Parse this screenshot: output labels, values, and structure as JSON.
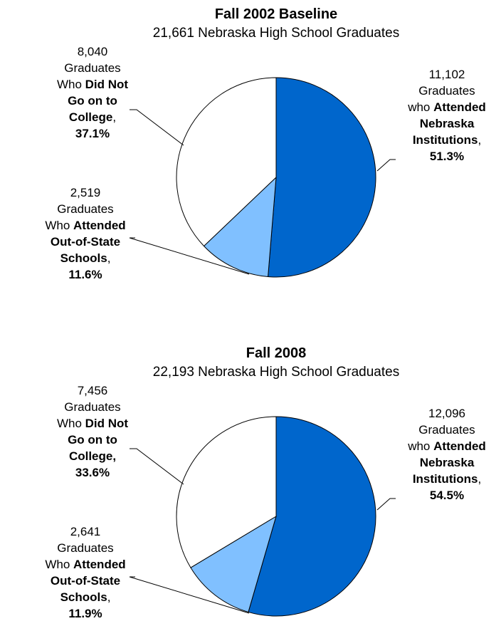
{
  "chart_data": [
    {
      "type": "pie",
      "title": "Fall 2002  Baseline",
      "subtitle": "21,661 Nebraska High School Graduates",
      "values": [
        51.3,
        11.6,
        37.1
      ],
      "value_labels": [
        "51.3%",
        "11.6%",
        "37.1%"
      ],
      "counts": [
        11102,
        2519,
        8040
      ],
      "count_labels": [
        "11,102",
        "2,519",
        "8,040"
      ],
      "colors": [
        "#0066cc",
        "#80c0ff",
        "#ffffff"
      ],
      "label_lines": [
        [
          [
            {
              "text": "Graduates",
              "bold": false
            }
          ],
          [
            {
              "text": "who ",
              "bold": false
            },
            {
              "text": "Attended",
              "bold": true
            }
          ],
          [
            {
              "text": "Nebraska",
              "bold": true
            }
          ],
          [
            {
              "text": "Institutions",
              "bold": true
            },
            {
              "text": ",",
              "bold": false
            }
          ]
        ],
        [
          [
            {
              "text": "Graduates",
              "bold": false
            }
          ],
          [
            {
              "text": "Who ",
              "bold": false
            },
            {
              "text": "Attended",
              "bold": true
            }
          ],
          [
            {
              "text": "Out-of-State",
              "bold": true
            }
          ],
          [
            {
              "text": "Schools",
              "bold": true
            },
            {
              "text": ",",
              "bold": false
            }
          ]
        ],
        [
          [
            {
              "text": "Graduates",
              "bold": false
            }
          ],
          [
            {
              "text": "Who ",
              "bold": false
            },
            {
              "text": "Did Not",
              "bold": true
            }
          ],
          [
            {
              "text": "Go on to",
              "bold": true
            }
          ],
          [
            {
              "text": "College",
              "bold": true
            },
            {
              "text": ",",
              "bold": false
            }
          ]
        ]
      ]
    },
    {
      "type": "pie",
      "title": "Fall 2008",
      "subtitle": "22,193 Nebraska High School Graduates",
      "values": [
        54.5,
        11.9,
        33.6
      ],
      "value_labels": [
        "54.5%",
        "11.9%",
        "33.6%"
      ],
      "counts": [
        12096,
        2641,
        7456
      ],
      "count_labels": [
        "12,096",
        "2,641",
        "7,456"
      ],
      "colors": [
        "#0066cc",
        "#80c0ff",
        "#ffffff"
      ],
      "label_lines": [
        [
          [
            {
              "text": "Graduates",
              "bold": false
            }
          ],
          [
            {
              "text": "who ",
              "bold": false
            },
            {
              "text": "Attended",
              "bold": true
            }
          ],
          [
            {
              "text": "Nebraska",
              "bold": true
            }
          ],
          [
            {
              "text": "Institutions",
              "bold": true
            },
            {
              "text": ",",
              "bold": false
            }
          ]
        ],
        [
          [
            {
              "text": "Graduates",
              "bold": false
            }
          ],
          [
            {
              "text": "Who ",
              "bold": false
            },
            {
              "text": "Attended",
              "bold": true
            }
          ],
          [
            {
              "text": "Out-of-State",
              "bold": true
            }
          ],
          [
            {
              "text": "Schools",
              "bold": true
            },
            {
              "text": ",",
              "bold": false
            }
          ]
        ],
        [
          [
            {
              "text": "Graduates",
              "bold": false
            }
          ],
          [
            {
              "text": "Who ",
              "bold": false
            },
            {
              "text": "Did Not",
              "bold": true
            }
          ],
          [
            {
              "text": "Go on to",
              "bold": true
            }
          ],
          [
            {
              "text": "College,",
              "bold": true
            }
          ]
        ]
      ]
    }
  ]
}
